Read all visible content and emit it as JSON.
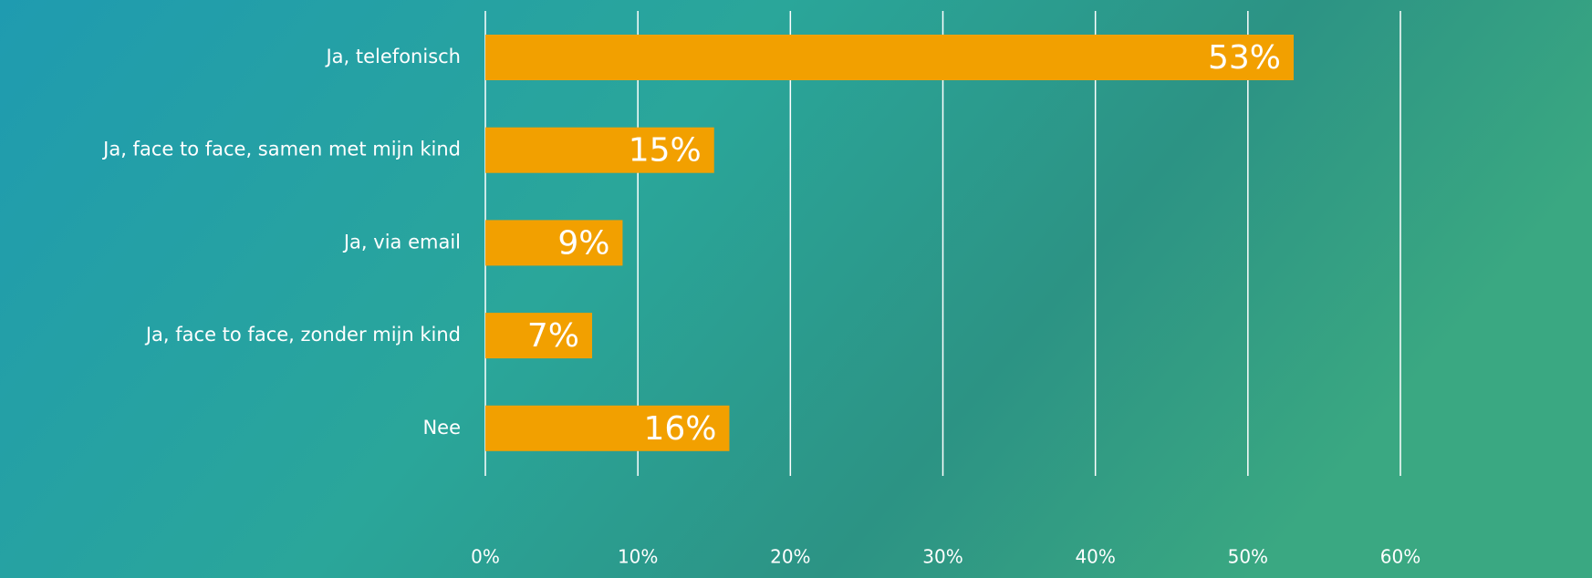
{
  "chart_data": {
    "type": "bar",
    "orientation": "horizontal",
    "categories": [
      "Ja, telefonisch",
      "Ja, face to face, samen met mijn kind",
      "Ja, via email",
      "Ja, face to face, zonder mijn kind",
      "Nee"
    ],
    "values": [
      53,
      15,
      9,
      7,
      16
    ],
    "value_labels": [
      "53%",
      "15%",
      "9%",
      "7%",
      "16%"
    ],
    "color": "#f2a000",
    "xlim": [
      0,
      60
    ],
    "xticks": [
      {
        "value": 0,
        "label": "0%"
      },
      {
        "value": 10,
        "label": "10%"
      },
      {
        "value": 20,
        "label": "20%"
      },
      {
        "value": 30,
        "label": "30%"
      },
      {
        "value": 40,
        "label": "40%"
      },
      {
        "value": 50,
        "label": "50%"
      },
      {
        "value": 60,
        "label": "60%"
      }
    ],
    "grid": true
  }
}
